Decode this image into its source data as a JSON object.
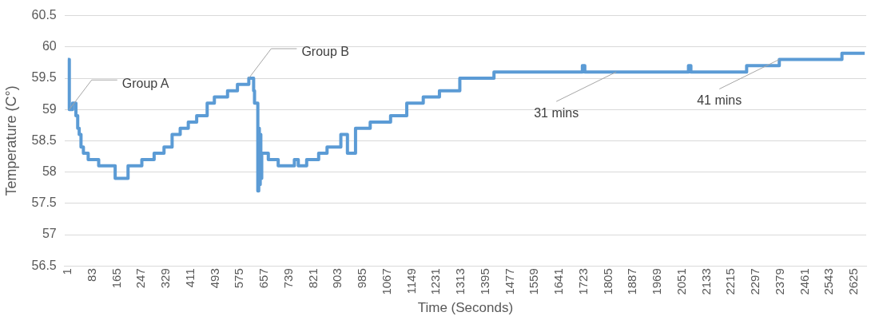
{
  "chart_data": {
    "type": "step",
    "xlabel": "Time (Seconds)",
    "ylabel": "Temperature (C°)",
    "xlim": [
      -10,
      2665
    ],
    "ylim": [
      56.5,
      60.5
    ],
    "xticks": [
      1,
      83,
      165,
      247,
      329,
      411,
      493,
      575,
      657,
      739,
      821,
      903,
      985,
      1067,
      1149,
      1231,
      1313,
      1395,
      1477,
      1559,
      1641,
      1723,
      1805,
      1887,
      1969,
      2051,
      2133,
      2215,
      2297,
      2379,
      2461,
      2543,
      2625
    ],
    "yticks": [
      56.5,
      57,
      57.5,
      58,
      58.5,
      59,
      59.5,
      60,
      60.5
    ],
    "grid": "y",
    "legend": false,
    "marker": "none",
    "line_style": "solid",
    "series": [
      {
        "color": "#5b9bd5",
        "x": [
          1,
          6,
          17,
          28,
          34,
          39,
          45,
          53,
          69,
          104,
          159,
          202,
          248,
          289,
          322,
          349,
          376,
          403,
          431,
          466,
          490,
          534,
          567,
          605,
          621,
          624,
          635,
          638,
          640,
          643,
          645,
          648,
          670,
          703,
          757,
          770,
          798,
          838,
          866,
          912,
          934,
          961,
          1010,
          1078,
          1132,
          1187,
          1241,
          1309,
          1423,
          1718,
          1726,
          2072,
          2080,
          2266,
          2375,
          2584,
          2660
        ],
        "values": [
          59.8,
          59.0,
          59.1,
          58.9,
          58.7,
          58.6,
          58.4,
          58.3,
          58.2,
          58.1,
          57.9,
          58.1,
          58.2,
          58.3,
          58.4,
          58.6,
          58.7,
          58.8,
          58.9,
          59.1,
          59.2,
          59.3,
          59.4,
          59.5,
          59.3,
          59.1,
          57.7,
          58.7,
          57.8,
          58.6,
          57.9,
          58.3,
          58.2,
          58.1,
          58.2,
          58.1,
          58.2,
          58.3,
          58.4,
          58.6,
          58.3,
          58.7,
          58.8,
          58.9,
          59.1,
          59.2,
          59.3,
          59.5,
          59.6,
          59.7,
          59.6,
          59.7,
          59.6,
          59.7,
          59.8,
          59.9,
          59.9
        ]
      }
    ],
    "annotations": [
      {
        "text": "Group A",
        "x": 6,
        "y": 59.0
      },
      {
        "text": "Group B",
        "x": 605,
        "y": 59.5
      },
      {
        "text": "31 mins",
        "x": 1831,
        "y": 59.6
      },
      {
        "text": "41 mins",
        "x": 2375,
        "y": 59.8
      }
    ]
  }
}
